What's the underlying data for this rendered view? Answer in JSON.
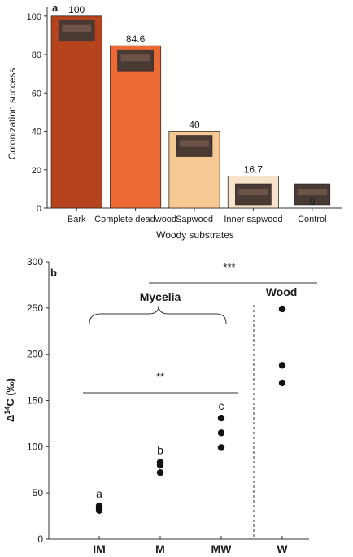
{
  "chart_data": [
    {
      "panel_label": "a",
      "type": "bar",
      "categories": [
        "Bark",
        "Complete deadwood",
        "Sapwood",
        "Inner sapwood",
        "Control"
      ],
      "values": [
        100,
        84.6,
        40,
        16.7,
        0
      ],
      "value_labels": [
        "100",
        "84.6",
        "40",
        "16.7",
        "0"
      ],
      "colors": [
        "#b5441e",
        "#ee6a35",
        "#f5c894",
        "#f7e3cc",
        "#fdf2e6"
      ],
      "xlabel": "Woody substrates",
      "ylabel": "Colonization success",
      "ylim": [
        0,
        105
      ],
      "yticks": [
        0,
        20,
        40,
        60,
        80,
        100
      ],
      "grid": false
    },
    {
      "panel_label": "b",
      "type": "scatter",
      "categories": [
        "IM",
        "M",
        "MW",
        "W"
      ],
      "points": [
        {
          "category": "IM",
          "y": 36
        },
        {
          "category": "IM",
          "y": 33
        },
        {
          "category": "IM",
          "y": 31
        },
        {
          "category": "M",
          "y": 83
        },
        {
          "category": "M",
          "y": 80
        },
        {
          "category": "M",
          "y": 72
        },
        {
          "category": "MW",
          "y": 131
        },
        {
          "category": "MW",
          "y": 115
        },
        {
          "category": "MW",
          "y": 99
        },
        {
          "category": "W",
          "y": 249
        },
        {
          "category": "W",
          "y": 188
        },
        {
          "category": "W",
          "y": 169
        }
      ],
      "letters": [
        {
          "category": "IM",
          "text": "a"
        },
        {
          "category": "M",
          "text": "b"
        },
        {
          "category": "MW",
          "text": "c"
        }
      ],
      "ylabel_prefix": "Δ",
      "ylabel_sup": "14",
      "ylabel_suffix": "C (‰)",
      "ylim": [
        0,
        300
      ],
      "yticks": [
        0,
        50,
        100,
        150,
        200,
        250,
        300
      ],
      "group_labels": {
        "mycelia": "Mycelia",
        "wood": "Wood"
      },
      "significance": {
        "top": "***",
        "mid": "**"
      },
      "grid": false
    }
  ]
}
